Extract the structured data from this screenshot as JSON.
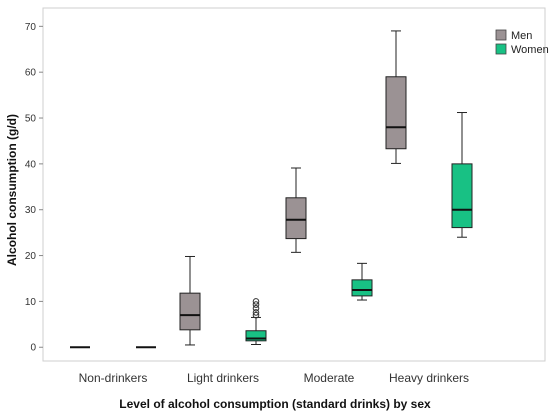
{
  "chart_data": {
    "type": "box",
    "xlabel": "Level of alcohol consumption (standard drinks) by sex",
    "ylabel": "Alcohol consumption (g/d)",
    "ylim": [
      -3,
      74
    ],
    "yticks": [
      0,
      10,
      20,
      30,
      40,
      50,
      60,
      70
    ],
    "categories": [
      "Non-drinkers",
      "Light drinkers",
      "Moderate",
      "Heavy drinkers"
    ],
    "legend": {
      "position": "top-right"
    },
    "grid": false,
    "series": [
      {
        "name": "Men",
        "color": "#9b9294",
        "boxes": [
          {
            "min": 0,
            "q1": 0,
            "median": 0,
            "q3": 0,
            "max": 0,
            "outliers": []
          },
          {
            "min": 0.5,
            "q1": 3.8,
            "median": 7,
            "q3": 11.8,
            "max": 19.8,
            "outliers": []
          },
          {
            "min": 20.7,
            "q1": 23.7,
            "median": 27.8,
            "q3": 32.6,
            "max": 39.1,
            "outliers": []
          },
          {
            "min": 40.1,
            "q1": 43.3,
            "median": 48,
            "q3": 59,
            "max": 69,
            "outliers": []
          }
        ]
      },
      {
        "name": "Women",
        "color": "#18c184",
        "boxes": [
          {
            "min": 0,
            "q1": 0,
            "median": 0,
            "q3": 0,
            "max": 0,
            "outliers": []
          },
          {
            "min": 0.6,
            "q1": 1.4,
            "median": 1.9,
            "q3": 3.6,
            "max": 6.5,
            "outliers": [
              7,
              7.6,
              8.5,
              9.3,
              10
            ]
          },
          {
            "min": 10.3,
            "q1": 11.2,
            "median": 12.5,
            "q3": 14.7,
            "max": 18.3,
            "outliers": []
          },
          {
            "min": 24,
            "q1": 26.1,
            "median": 30,
            "q3": 40,
            "max": 51.2,
            "outliers": []
          }
        ]
      }
    ]
  }
}
